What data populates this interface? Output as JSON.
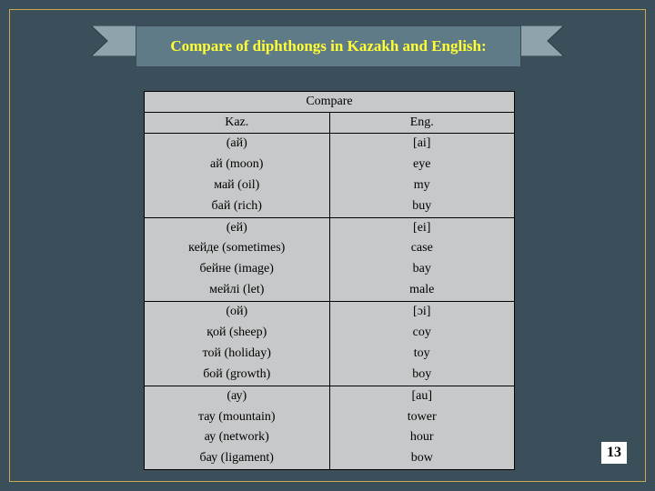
{
  "title": "Compare of diphthongs in Kazakh and English:",
  "table": {
    "header": "Compare",
    "columns": [
      "Kaz.",
      "Eng."
    ],
    "groups": [
      {
        "kaz": [
          "(ай)",
          "ай (moon)",
          "май (oil)",
          "бай (rich)"
        ],
        "eng": [
          "[ai]",
          "eye",
          "my",
          "buy"
        ]
      },
      {
        "kaz": [
          "(ей)",
          "кейде (sometimes)",
          "бейне (image)",
          "мейлі (let)"
        ],
        "eng": [
          "[ei]",
          "case",
          "bay",
          "male"
        ]
      },
      {
        "kaz": [
          "(ой)",
          "қой (sheep)",
          "той (holiday)",
          "бой (growth)"
        ],
        "eng": [
          "[ɔi]",
          "coy",
          "toy",
          "boy"
        ]
      },
      {
        "kaz": [
          "(ау)",
          "тау (mountain)",
          "ау (network)",
          "бау (ligament)"
        ],
        "eng": [
          "[au]",
          "tower",
          "hour",
          "bow"
        ]
      }
    ]
  },
  "pageNumber": "13",
  "colors": {
    "slideBg": "#3b4f5a",
    "slideBorder": "#c8a951",
    "titleBoxBg": "#5f7b88",
    "titleText": "#ffff33",
    "tableBg": "#c7c8c9",
    "tableBorder": "#000000",
    "ribbon": "#8fa3ad"
  }
}
